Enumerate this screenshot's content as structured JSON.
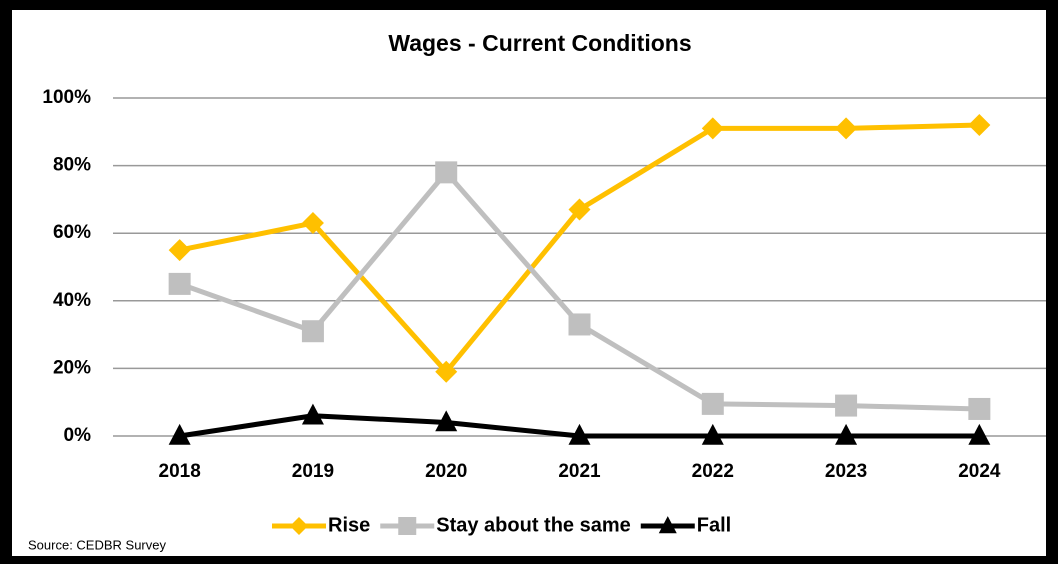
{
  "chart_data": {
    "type": "line",
    "title": "Wages - Current Conditions",
    "categories": [
      "2018",
      "2019",
      "2020",
      "2021",
      "2022",
      "2023",
      "2024"
    ],
    "series": [
      {
        "name": "Rise",
        "color": "#ffc000",
        "marker": "diamond",
        "values": [
          55,
          63,
          19,
          67,
          91,
          91,
          92
        ]
      },
      {
        "name": "Stay about the same",
        "color": "#bfbfbf",
        "marker": "square",
        "values": [
          45,
          31,
          78,
          33,
          9.5,
          9,
          8
        ]
      },
      {
        "name": "Fall",
        "color": "#000000",
        "marker": "triangle",
        "values": [
          0,
          6,
          4,
          0,
          0,
          0,
          0
        ]
      }
    ],
    "ylim": [
      0,
      100
    ],
    "yticks": [
      {
        "value": 0,
        "label": "0%"
      },
      {
        "value": 20,
        "label": "20%"
      },
      {
        "value": 40,
        "label": "40%"
      },
      {
        "value": 60,
        "label": "60%"
      },
      {
        "value": 80,
        "label": "80%"
      },
      {
        "value": 100,
        "label": "100%"
      }
    ],
    "grid": true,
    "legend": "bottom",
    "source": "Source: CEDBR Survey"
  }
}
